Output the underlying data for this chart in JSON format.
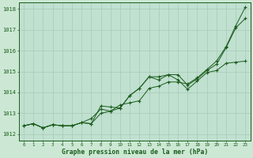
{
  "title": "Graphe pression niveau de la mer (hPa)",
  "background_color": "#cce8d4",
  "plot_bg_color": "#c0e0d0",
  "grid_color": "#a8c8b8",
  "line_color": "#1a5c1a",
  "marker_color": "#1a5c1a",
  "x_labels": [
    "0",
    "1",
    "2",
    "3",
    "4",
    "5",
    "6",
    "7",
    "8",
    "9",
    "10",
    "11",
    "12",
    "13",
    "14",
    "15",
    "16",
    "17",
    "18",
    "19",
    "20",
    "21",
    "22",
    "23"
  ],
  "ylim": [
    1011.7,
    1018.3
  ],
  "yticks": [
    1012,
    1013,
    1014,
    1015,
    1016,
    1017,
    1018
  ],
  "series1": [
    1012.4,
    1012.5,
    1012.3,
    1012.45,
    1012.4,
    1012.4,
    1012.55,
    1012.5,
    1013.35,
    1013.3,
    1013.25,
    1013.85,
    1014.2,
    1014.75,
    1014.6,
    1014.85,
    1014.85,
    1014.35,
    1014.65,
    1015.05,
    1015.35,
    1016.15,
    1017.1,
    1017.55
  ],
  "series2": [
    1012.4,
    1012.5,
    1012.3,
    1012.45,
    1012.4,
    1012.4,
    1012.55,
    1012.75,
    1013.2,
    1013.1,
    1013.25,
    1013.85,
    1014.2,
    1014.75,
    1014.75,
    1014.85,
    1014.6,
    1014.15,
    1014.55,
    1014.95,
    1015.05,
    1015.4,
    1015.45,
    1015.5
  ],
  "series3": [
    1012.4,
    1012.5,
    1012.3,
    1012.45,
    1012.4,
    1012.4,
    1012.55,
    1012.5,
    1013.0,
    1013.1,
    1013.4,
    1013.5,
    1013.6,
    1014.2,
    1014.3,
    1014.5,
    1014.5,
    1014.4,
    1014.7,
    1015.1,
    1015.5,
    1016.2,
    1017.2,
    1018.1
  ]
}
